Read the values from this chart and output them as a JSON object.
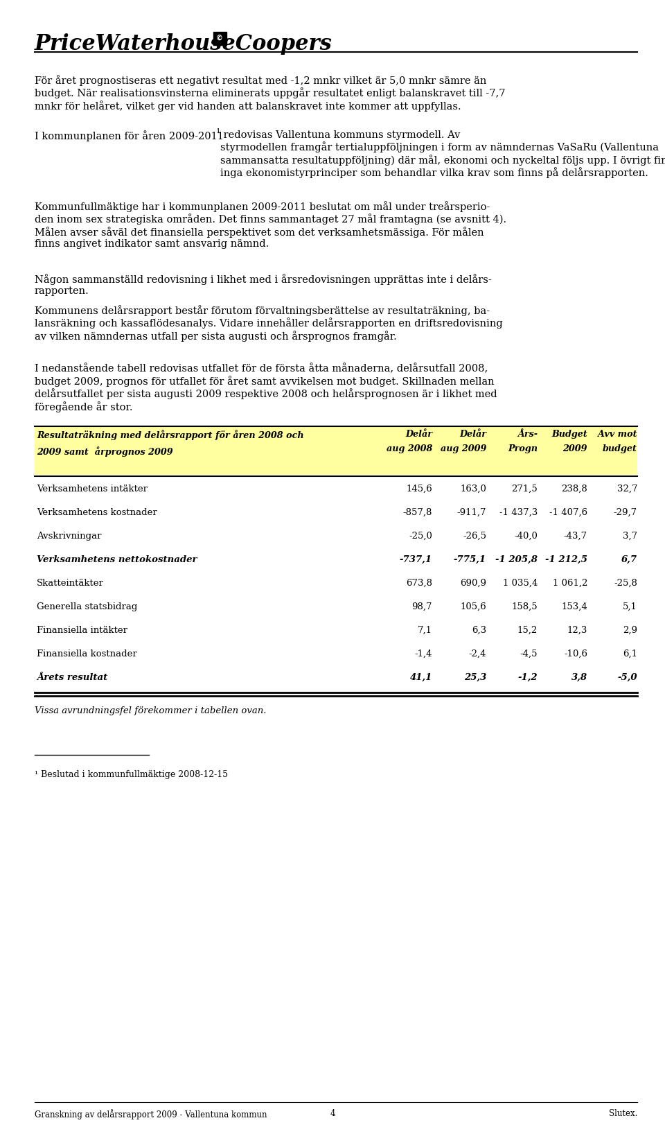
{
  "logo_text": "PriceWaterhouseCoopers",
  "body_paragraphs": [
    "För året prognostiseras ett negativt resultat med -1,2 mnkr vilket är 5,0 mnkr sämre än\nbudget. När realisationsvinsterna eliminerats uppgår resultatet enligt balanskravet till -7,7\nmnkr för helåret, vilket ger vid handen att balanskravet inte kommer att uppfyllas.",
    "I kommunplanen för åren 2009-2011¹ redovisas Vallentuna kommuns styrmodell. Av\nstyrmodellen framgår tertialuppföljningen i form av nämndernas VaSaRu (Vallentuna\nsammansatta resultatuppföljning) där mål, ekonomi och nyckeltal följs upp. I övrigt finns\ninga ekonomistyrprinciper som behandlar vilka krav som finns på delårsrapporten.",
    "Kommunfullmäktige har i kommunplanen 2009-2011 beslutat om mål under treårsperio-\nden inom sex strategiska områden. Det finns sammantaget 27 mål framtagna (se avsnitt 4).\nMålen avser såväl det finansiella perspektivet som det verksamhetsmässiga. För målen\nfinns angivet indikator samt ansvarig nämnd.",
    "Någon sammanställd redovisning i likhet med i årsredovisningen upprättas inte i delårs-\nrapporten.",
    "Kommunens delårsrapport består förutom förvaltningsberättelse av resultaträkning, ba-\nlansräkning och kassaflödesanalys. Vidare innehåller delårsrapporten en driftsredovisning\nav vilken nämndernas utfall per sista augusti och årsprognos framgår.",
    "I nedanstående tabell redovisas utfallet för de första åtta månaderna, delårsutfall 2008,\nbudget 2009, prognos för utfallet för året samt avvikelsen mot budget. Skillnaden mellan\ndelårsutfallet per sista augusti 2009 respektive 2008 och helårsprognosen är i likhet med\nföregående år stor."
  ],
  "table_header_bg": "#FFFFA0",
  "table_header_line1": "Resultaträkning med delårsrapport för åren 2008 och",
  "table_header_line2": "2009 samt  årprognos 2009",
  "table_col_headers": [
    "Delår\naug 2008",
    "Delår\naug 2009",
    "Års-\nProgn",
    "Budget\n2009",
    "Avv mot\nbudget"
  ],
  "table_rows": [
    {
      "label": "Verksamhetens intäkter",
      "bold": false,
      "values": [
        "145,6",
        "163,0",
        "271,5",
        "238,8",
        "32,7"
      ]
    },
    {
      "label": "Verksamhetens kostnader",
      "bold": false,
      "values": [
        "-857,8",
        "-911,7",
        "-1 437,3",
        "-1 407,6",
        "-29,7"
      ]
    },
    {
      "label": "Avskrivningar",
      "bold": false,
      "values": [
        "-25,0",
        "-26,5",
        "-40,0",
        "-43,7",
        "3,7"
      ]
    },
    {
      "label": "Verksamhetens nettokostnader",
      "bold": true,
      "values": [
        "-737,1",
        "-775,1",
        "-1 205,8",
        "-1 212,5",
        "6,7"
      ]
    },
    {
      "label": "Skatteintäkter",
      "bold": false,
      "values": [
        "673,8",
        "690,9",
        "1 035,4",
        "1 061,2",
        "-25,8"
      ]
    },
    {
      "label": "Generella statsbidrag",
      "bold": false,
      "values": [
        "98,7",
        "105,6",
        "158,5",
        "153,4",
        "5,1"
      ]
    },
    {
      "label": "Finansiella intäkter",
      "bold": false,
      "values": [
        "7,1",
        "6,3",
        "15,2",
        "12,3",
        "2,9"
      ]
    },
    {
      "label": "Finansiella kostnader",
      "bold": false,
      "values": [
        "-1,4",
        "-2,4",
        "-4,5",
        "-10,6",
        "6,1"
      ]
    },
    {
      "label": "Årets resultat",
      "bold": true,
      "values": [
        "41,1",
        "25,3",
        "-1,2",
        "3,8",
        "-5,0"
      ]
    }
  ],
  "footnote_italic": "Vissa avrundningsfel förekommer i tabellen ovan.",
  "footnote1": "¹ Beslutad i kommunfullmäktige 2008-12-15",
  "footer_left": "Granskning av delårsrapport 2009 - Vallentuna kommun",
  "footer_center": "4",
  "footer_right": "Slutex.",
  "bg_color": "#ffffff",
  "text_color": "#000000",
  "body_fontsize": 10.5,
  "table_fs": 9.2,
  "table_row_fs": 9.5
}
